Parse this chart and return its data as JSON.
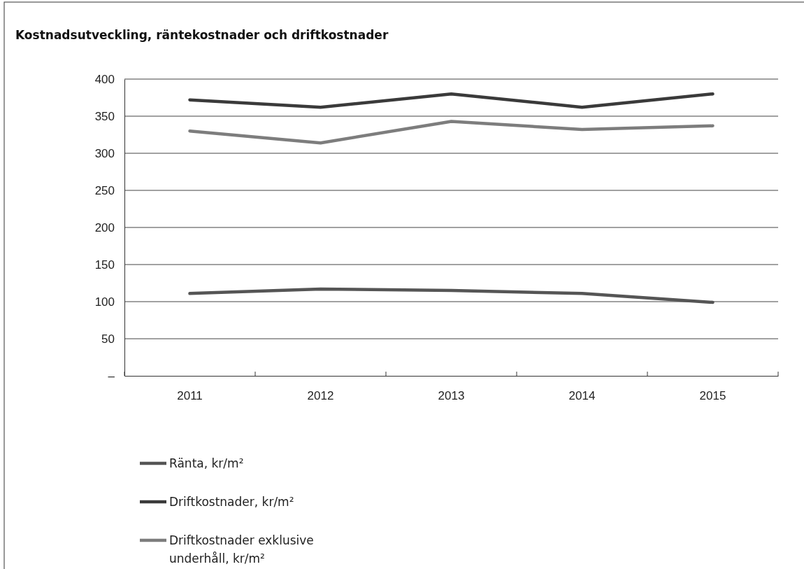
{
  "chart_data": {
    "type": "line",
    "title": "Kostnadsutveckling, räntekostnader och driftkostnader",
    "categories": [
      "2011",
      "2012",
      "2013",
      "2014",
      "2015"
    ],
    "series": [
      {
        "name": "Ränta, kr/m²",
        "color": "#555555",
        "values": [
          111,
          117,
          115,
          111,
          99
        ]
      },
      {
        "name": "Driftkostnader, kr/m²",
        "color": "#3a3a3a",
        "values": [
          372,
          362,
          380,
          362,
          380
        ]
      },
      {
        "name": "Driftkostnader exklusive underhåll, kr/m²",
        "color": "#7d7d7d",
        "values": [
          330,
          314,
          343,
          332,
          337
        ]
      }
    ],
    "ylim": [
      0,
      400
    ],
    "yticks": [
      {
        "value": 0,
        "label": "–"
      },
      50,
      100,
      150,
      200,
      250,
      300,
      350,
      400
    ],
    "grid": "y",
    "legend": "bottom left",
    "marker": "none",
    "line_style": "solid"
  }
}
